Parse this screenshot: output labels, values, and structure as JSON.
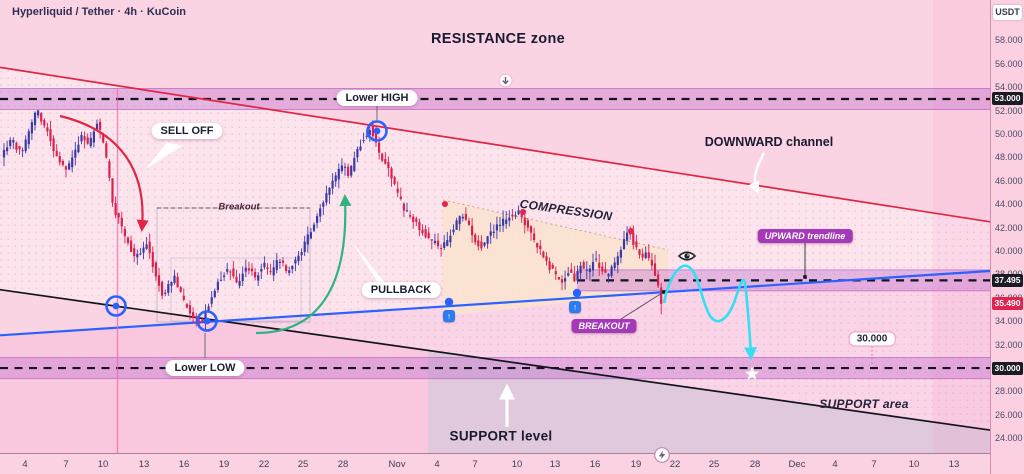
{
  "window": {
    "title": "Hyperliquid / Tether · 4h · KuCoin"
  },
  "price_axis": {
    "currency_button": "USDT",
    "highlights": [
      {
        "name": "resistance",
        "label": "53.000",
        "price": 53.0,
        "bg": "#1b1b25"
      },
      {
        "name": "breakout-level",
        "label": "37.495",
        "price": 37.495,
        "bg": "#1b1b25"
      },
      {
        "name": "last-price",
        "label": "35.490",
        "price": 35.49,
        "bg": "#df2450"
      },
      {
        "name": "support",
        "label": "30.000",
        "price": 30.0,
        "bg": "#1b1b25"
      }
    ]
  },
  "annotations": {
    "resistance_zone": "RESISTANCE zone",
    "lower_high": "Lower HIGH",
    "sell_off": "SELL OFF",
    "breakout_range": "Breakout",
    "pullback": "PULLBACK",
    "compression": "COMPRESSION",
    "downward_channel": "DOWNWARD channel",
    "upward_trendline": "UPWARD trendline",
    "breakout": "BREAKOUT",
    "lower_low": "Lower LOW",
    "support_level": "SUPPORT level",
    "support_area": "SUPPORT area",
    "target_level": "30.000",
    "up_arrow_badge": "↑"
  },
  "colors": {
    "bull": "#3a3aa8",
    "bear": "#d9214f",
    "channel_top": "#e12544",
    "channel_bottom": "#14141e",
    "trendline": "#2962ff",
    "projection": "#35dff2",
    "zone_band": "#c06ad0",
    "last_price_bg": "#df2450"
  },
  "chart_data": {
    "type": "candlestick",
    "pair": "Hyperliquid / Tether",
    "interval": "4h",
    "exchange": "KuCoin",
    "quote_currency": "USDT",
    "ylim": [
      22.8,
      61.5
    ],
    "y_ticks": [
      24,
      26,
      28,
      30,
      32,
      34,
      36,
      38,
      40,
      42,
      44,
      46,
      48,
      50,
      52,
      54,
      56,
      58
    ],
    "x_ticks": [
      "4",
      "7",
      "10",
      "13",
      "16",
      "19",
      "22",
      "25",
      "28",
      "Nov",
      "4",
      "7",
      "10",
      "13",
      "16",
      "19",
      "22",
      "25",
      "28",
      "Dec",
      "4",
      "7",
      "10",
      "13"
    ],
    "levels": {
      "resistance": 53.0,
      "breakout_level": 37.495,
      "last_price": 35.49,
      "support": 30.0,
      "projection_target": 30.0
    },
    "trendlines": [
      {
        "name": "downward-channel-top",
        "from_price": 55.7,
        "to_price": 42.5
      },
      {
        "name": "downward-channel-bottom",
        "from_price": 36.7,
        "to_price": 24.7
      },
      {
        "name": "upward-trendline",
        "from_price": 32.8,
        "to_price": 38.3
      }
    ],
    "price_path": [
      [
        4,
        48.2
      ],
      [
        14,
        49.5
      ],
      [
        25,
        48.3
      ],
      [
        33,
        50.5
      ],
      [
        40,
        52.0
      ],
      [
        46,
        51.0
      ],
      [
        52,
        50.0
      ],
      [
        58,
        48.3
      ],
      [
        64,
        47.3
      ],
      [
        70,
        46.8
      ],
      [
        78,
        48.5
      ],
      [
        85,
        50.0
      ],
      [
        92,
        49.0
      ],
      [
        100,
        51.0
      ],
      [
        106,
        49.5
      ],
      [
        112,
        46.5
      ],
      [
        117,
        43.5
      ],
      [
        122,
        42.6
      ],
      [
        126,
        41.8
      ],
      [
        132,
        40.5
      ],
      [
        138,
        39.2
      ],
      [
        144,
        40.0
      ],
      [
        150,
        40.8
      ],
      [
        158,
        38.2
      ],
      [
        166,
        36.2
      ],
      [
        172,
        37.2
      ],
      [
        178,
        37.8
      ],
      [
        186,
        35.8
      ],
      [
        196,
        34.4
      ],
      [
        205,
        33.8
      ],
      [
        214,
        36.0
      ],
      [
        222,
        37.5
      ],
      [
        232,
        38.5
      ],
      [
        240,
        37.2
      ],
      [
        250,
        38.8
      ],
      [
        258,
        37.6
      ],
      [
        266,
        39.0
      ],
      [
        274,
        38.0
      ],
      [
        282,
        39.4
      ],
      [
        290,
        38.2
      ],
      [
        298,
        39.0
      ],
      [
        306,
        40.3
      ],
      [
        314,
        41.8
      ],
      [
        322,
        43.5
      ],
      [
        330,
        44.8
      ],
      [
        338,
        46.2
      ],
      [
        346,
        47.4
      ],
      [
        352,
        46.4
      ],
      [
        358,
        48.2
      ],
      [
        366,
        49.6
      ],
      [
        374,
        50.6
      ],
      [
        380,
        49.0
      ],
      [
        386,
        47.8
      ],
      [
        392,
        46.8
      ],
      [
        398,
        45.5
      ],
      [
        406,
        43.8
      ],
      [
        414,
        42.8
      ],
      [
        420,
        42.2
      ],
      [
        428,
        41.4
      ],
      [
        436,
        40.8
      ],
      [
        444,
        40.2
      ],
      [
        452,
        41.2
      ],
      [
        458,
        42.3
      ],
      [
        466,
        43.1
      ],
      [
        472,
        42.1
      ],
      [
        478,
        41.0
      ],
      [
        484,
        40.3
      ],
      [
        492,
        41.3
      ],
      [
        500,
        42.1
      ],
      [
        508,
        42.7
      ],
      [
        516,
        43.1
      ],
      [
        523,
        43.3
      ],
      [
        530,
        42.1
      ],
      [
        538,
        40.7
      ],
      [
        546,
        39.7
      ],
      [
        552,
        38.7
      ],
      [
        560,
        37.9
      ],
      [
        566,
        37.3
      ],
      [
        572,
        38.4
      ],
      [
        578,
        37.6
      ],
      [
        584,
        38.9
      ],
      [
        590,
        38.2
      ],
      [
        598,
        39.3
      ],
      [
        604,
        38.5
      ],
      [
        610,
        37.9
      ],
      [
        616,
        38.7
      ],
      [
        622,
        39.7
      ],
      [
        628,
        41.3
      ],
      [
        632,
        41.7
      ],
      [
        638,
        40.4
      ],
      [
        644,
        39.3
      ],
      [
        650,
        39.9
      ],
      [
        654,
        38.9
      ],
      [
        658,
        38.1
      ],
      [
        662,
        37.0
      ],
      [
        666,
        35.5
      ]
    ]
  }
}
